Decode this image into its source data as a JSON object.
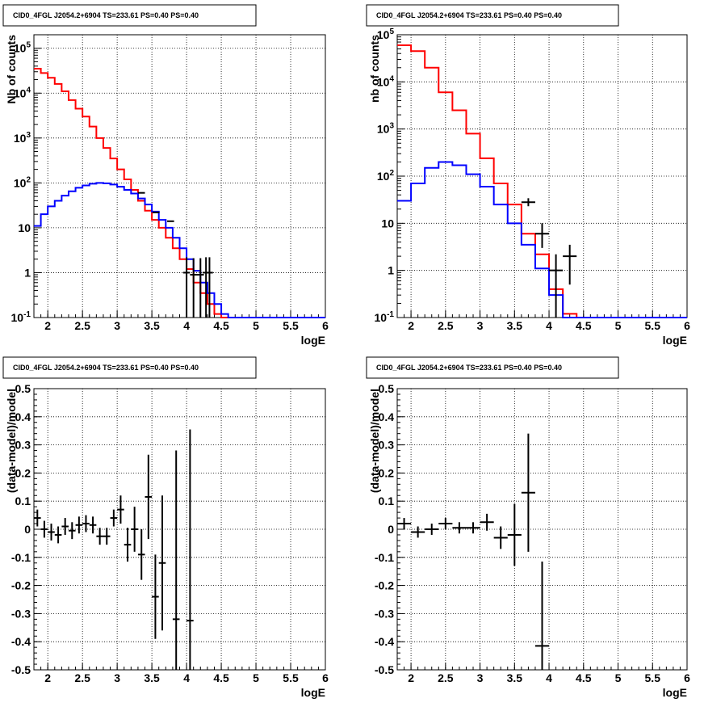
{
  "colors": {
    "data": "#000000",
    "total_model": "#ff0000",
    "source_model": "#0000ff",
    "grid": "#000000"
  },
  "chart_data": [
    {
      "type": "line",
      "title": "CID0_4FGL J2054.2+6904 TS=233.61 PS=0.40 PS=0.40",
      "xlabel": "logE",
      "ylabel": "Nb of counts",
      "xlim": [
        1.8,
        6.0
      ],
      "ylim": [
        0.1,
        200000
      ],
      "log_y": true,
      "grid": true,
      "x_ticks": [
        "2",
        "2.5",
        "3",
        "3.5",
        "4",
        "4.5",
        "5",
        "5.5",
        "6"
      ],
      "y_ticks": [
        "10^-1",
        "1",
        "10",
        "10^2",
        "10^3",
        "10^4",
        "10^5"
      ],
      "bin_edges": [
        1.8,
        1.9,
        2.0,
        2.1,
        2.2,
        2.3,
        2.4,
        2.5,
        2.6,
        2.7,
        2.8,
        2.9,
        3.0,
        3.1,
        3.2,
        3.3,
        3.4,
        3.5,
        3.6,
        3.7,
        3.8,
        3.9,
        4.0,
        4.1,
        4.2,
        4.3,
        4.4,
        4.5,
        4.6,
        4.7,
        4.8,
        4.9,
        5.0,
        5.1,
        5.2,
        5.3,
        5.4,
        5.5,
        5.6,
        5.7,
        5.8,
        5.9,
        6.0
      ],
      "series": [
        {
          "values": [
            35000,
            28000,
            22000,
            16000,
            11000,
            7000,
            4500,
            3000,
            1800,
            1000,
            600,
            350,
            200,
            120,
            70,
            40,
            24,
            15,
            10,
            6,
            3.5,
            2,
            1.2,
            0.6,
            0.35,
            0.2,
            0.12,
            0.1,
            0.1,
            0.1,
            0.1,
            0.1,
            0.1,
            0.1,
            0.1,
            0.1,
            0.1,
            0.1,
            0.1,
            0.1,
            0.1,
            0.1
          ]
        },
        {
          "values": [
            11,
            20,
            30,
            40,
            52,
            65,
            78,
            88,
            96,
            100,
            98,
            92,
            82,
            70,
            58,
            45,
            33,
            23,
            15,
            10,
            6,
            3.5,
            2,
            1.1,
            0.6,
            0.35,
            0.2,
            0.12,
            0.1,
            0.1,
            0.1,
            0.1,
            0.1,
            0.1,
            0.1,
            0.1,
            0.1,
            0.1,
            0.1,
            0.1,
            0.1,
            0.1
          ]
        },
        {
          "type": "errorbar",
          "x": [
            3.35,
            3.56,
            3.77,
            4.0,
            4.1,
            4.2,
            4.28,
            4.33
          ],
          "xerr": 0.05,
          "values": [
            60,
            22,
            14,
            1.0,
            0.9,
            0.9,
            1.0,
            1.0
          ],
          "yerr_low": [
            0,
            0,
            0,
            0.9,
            0.9,
            0.9,
            0.9,
            0.9
          ],
          "yerr_high": [
            0,
            0,
            0,
            1.2,
            1.2,
            1.2,
            1.2,
            1.2
          ]
        }
      ]
    },
    {
      "type": "line",
      "title": "CID0_4FGL J2054.2+6904 TS=233.61 PS=0.40 PS=0.40",
      "xlabel": "logE",
      "ylabel": "nb of counts",
      "xlim": [
        1.8,
        6.0
      ],
      "ylim": [
        0.1,
        100000
      ],
      "log_y": true,
      "grid": true,
      "x_ticks": [
        "2",
        "2.5",
        "3",
        "3.5",
        "4",
        "4.5",
        "5",
        "5.5",
        "6"
      ],
      "y_ticks": [
        "10^-1",
        "1",
        "10",
        "10^2",
        "10^3",
        "10^4",
        "10^5"
      ],
      "bin_edges": [
        1.8,
        2.0,
        2.2,
        2.4,
        2.6,
        2.8,
        3.0,
        3.2,
        3.4,
        3.6,
        3.8,
        4.0,
        4.2,
        4.4,
        4.6,
        4.8,
        5.0,
        5.2,
        5.4,
        5.6,
        5.8,
        6.0
      ],
      "series": [
        {
          "values": [
            60000,
            45000,
            20000,
            6000,
            2500,
            800,
            240,
            70,
            25,
            6,
            2.2,
            0.4,
            0.12,
            0.1,
            0.1,
            0.1,
            0.1,
            0.1,
            0.1,
            0.1,
            0.1
          ]
        },
        {
          "values": [
            30,
            70,
            150,
            200,
            170,
            110,
            60,
            25,
            10,
            3.5,
            1.1,
            0.3,
            0.1,
            0.1,
            0.1,
            0.1,
            0.1,
            0.1,
            0.1,
            0.1,
            0.1
          ]
        },
        {
          "type": "errorbar",
          "x": [
            3.7,
            3.9,
            4.1,
            4.3
          ],
          "xerr": 0.1,
          "values": [
            28,
            6,
            1.0,
            2.0
          ],
          "yerr_low": [
            5,
            3,
            0.9,
            1.5
          ],
          "yerr_high": [
            6,
            4,
            1.2,
            1.5
          ]
        }
      ]
    },
    {
      "type": "scatter",
      "title": "CID0_4FGL J2054.2+6904 TS=233.61 PS=0.40 PS=0.40",
      "xlabel": "logE",
      "ylabel": "(data-model)/model",
      "xlim": [
        1.8,
        6.0
      ],
      "ylim": [
        -0.5,
        0.5
      ],
      "grid": true,
      "x_ticks": [
        "2",
        "2.5",
        "3",
        "3.5",
        "4",
        "4.5",
        "5",
        "5.5",
        "6"
      ],
      "y_ticks": [
        "-0.5",
        "-0.4",
        "-0.3",
        "-0.2",
        "-0.1",
        "0",
        "0.1",
        "0.2",
        "0.3",
        "0.4",
        "0.5"
      ],
      "series": [
        {
          "type": "errorbar",
          "x": [
            1.85,
            1.95,
            2.05,
            2.15,
            2.25,
            2.35,
            2.45,
            2.55,
            2.65,
            2.75,
            2.85,
            2.95,
            3.05,
            3.15,
            3.25,
            3.35,
            3.45,
            3.55,
            3.65,
            3.85,
            4.05
          ],
          "xerr": 0.05,
          "values": [
            0.04,
            0.0,
            -0.01,
            -0.02,
            0.01,
            -0.005,
            0.015,
            0.02,
            0.015,
            -0.025,
            -0.025,
            0.04,
            0.07,
            -0.055,
            0.0,
            -0.09,
            0.115,
            -0.24,
            -0.12,
            -0.32,
            -0.325
          ],
          "yerr": [
            0.03,
            0.03,
            0.03,
            0.03,
            0.03,
            0.03,
            0.03,
            0.03,
            0.03,
            0.03,
            0.03,
            0.03,
            0.05,
            0.06,
            0.08,
            0.09,
            0.15,
            0.15,
            0.24,
            0.6,
            0.68
          ]
        }
      ]
    },
    {
      "type": "scatter",
      "title": "CID0_4FGL J2054.2+6904 TS=233.61 PS=0.40 PS=0.40",
      "xlabel": "logE",
      "ylabel": "(data-model)/model",
      "xlim": [
        1.8,
        6.0
      ],
      "ylim": [
        -0.5,
        0.5
      ],
      "grid": true,
      "x_ticks": [
        "2",
        "2.5",
        "3",
        "3.5",
        "4",
        "4.5",
        "5",
        "5.5",
        "6"
      ],
      "y_ticks": [
        "-0.5",
        "-0.4",
        "-0.3",
        "-0.2",
        "-0.1",
        "0",
        "0.1",
        "0.2",
        "0.3",
        "0.4",
        "0.5"
      ],
      "series": [
        {
          "type": "errorbar",
          "x": [
            1.9,
            2.1,
            2.3,
            2.5,
            2.7,
            2.9,
            3.1,
            3.3,
            3.5,
            3.7,
            3.9
          ],
          "xerr": 0.1,
          "values": [
            0.02,
            -0.01,
            0.0,
            0.02,
            0.005,
            0.005,
            0.025,
            -0.03,
            -0.02,
            0.13,
            -0.415
          ],
          "yerr": [
            0.02,
            0.02,
            0.02,
            0.02,
            0.02,
            0.02,
            0.03,
            0.04,
            0.11,
            0.21,
            0.3
          ]
        }
      ]
    }
  ]
}
